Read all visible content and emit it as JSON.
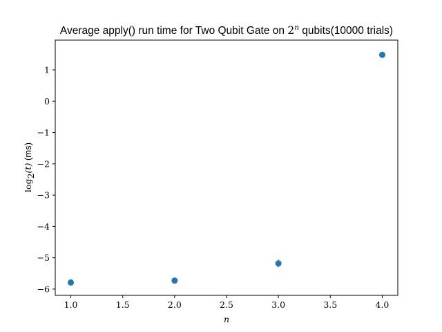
{
  "chart_data": {
    "type": "scatter",
    "title": "Average apply() run time for Two Qubit Gate on 2^n qubits(10000 trials)",
    "title_parts": {
      "prefix": "Average apply() run time for Two Qubit Gate on ",
      "base": "2",
      "exponent": "n",
      "suffix": " qubits(10000 trials)"
    },
    "xlabel": "n",
    "ylabel": "log2(t) (ms)",
    "ylabel_parts": {
      "func": "log",
      "sub": "2",
      "arg": "(t)",
      "unit": " (ms)"
    },
    "xlim": [
      0.85,
      4.15
    ],
    "ylim": [
      -6.2,
      1.95
    ],
    "xticks": [
      1.0,
      1.5,
      2.0,
      2.5,
      3.0,
      3.5,
      4.0
    ],
    "xtick_labels": [
      "1.0",
      "1.5",
      "2.0",
      "2.5",
      "3.0",
      "3.5",
      "4.0"
    ],
    "yticks": [
      -6,
      -5,
      -4,
      -3,
      -2,
      -1,
      0,
      1
    ],
    "ytick_labels": [
      "−6",
      "−5",
      "−4",
      "−3",
      "−2",
      "−1",
      "0",
      "1"
    ],
    "grid": false,
    "series": [
      {
        "color": "#1f77b4",
        "x": [
          1.0,
          2.0,
          3.0,
          4.0
        ],
        "y": [
          -5.79,
          -5.73,
          -5.18,
          1.48
        ],
        "yerr": [
          0.02,
          0.02,
          0.12,
          0.02
        ]
      }
    ]
  }
}
